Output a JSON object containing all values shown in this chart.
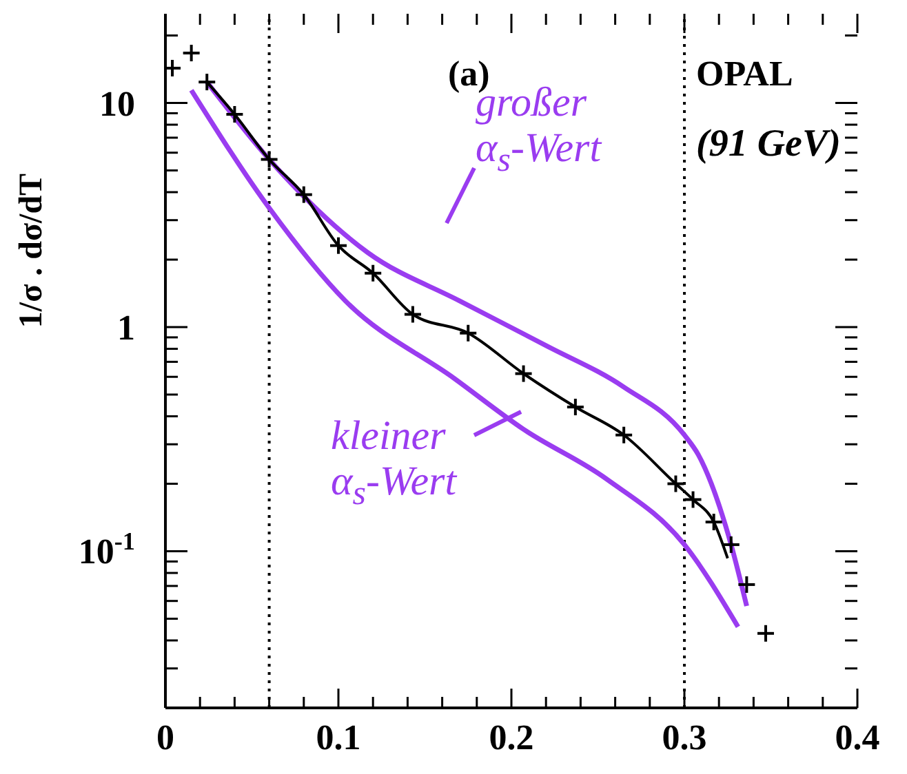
{
  "chart_data": {
    "type": "line",
    "ylabel": "1/σ . dσ/dT",
    "log": "y",
    "xlim": [
      0,
      0.4
    ],
    "xticks": [
      0,
      {
        "value": 0.02,
        "label": null
      },
      {
        "value": 0.04,
        "label": null
      },
      {
        "value": 0.06,
        "label": null
      },
      {
        "value": 0.08,
        "label": null
      },
      0.1,
      {
        "value": 0.12,
        "label": null
      },
      {
        "value": 0.14,
        "label": null
      },
      {
        "value": 0.16,
        "label": null
      },
      {
        "value": 0.18,
        "label": null
      },
      0.2,
      {
        "value": 0.22,
        "label": null
      },
      {
        "value": 0.24,
        "label": null
      },
      {
        "value": 0.26,
        "label": null
      },
      {
        "value": 0.28,
        "label": null
      },
      0.3,
      {
        "value": 0.32,
        "label": null
      },
      {
        "value": 0.34,
        "label": null
      },
      {
        "value": 0.36,
        "label": null
      },
      {
        "value": 0.38,
        "label": null
      },
      0.4
    ],
    "ylim": [
      0.02,
      25
    ],
    "yticks": [
      {
        "value": 0.02,
        "label": null
      },
      {
        "value": 0.03,
        "label": null
      },
      {
        "value": 0.04,
        "label": null
      },
      {
        "value": 0.05,
        "label": null
      },
      {
        "value": 0.06,
        "label": null
      },
      {
        "value": 0.07,
        "label": null
      },
      {
        "value": 0.08,
        "label": null
      },
      {
        "value": 0.09,
        "label": null
      },
      {
        "value": 0.1,
        "label": "10$^{-1}$"
      },
      {
        "value": 0.2,
        "label": null
      },
      {
        "value": 0.3,
        "label": null
      },
      {
        "value": 0.4,
        "label": null
      },
      {
        "value": 0.5,
        "label": null
      },
      {
        "value": 0.6,
        "label": null
      },
      {
        "value": 0.7,
        "label": null
      },
      {
        "value": 0.8,
        "label": null
      },
      {
        "value": 0.9,
        "label": null
      },
      1,
      {
        "value": 2,
        "label": null
      },
      {
        "value": 3,
        "label": null
      },
      {
        "value": 4,
        "label": null
      },
      {
        "value": 5,
        "label": null
      },
      {
        "value": 6,
        "label": null
      },
      {
        "value": 7,
        "label": null
      },
      {
        "value": 8,
        "label": null
      },
      {
        "value": 9,
        "label": null
      },
      10,
      {
        "value": 20,
        "label": null
      }
    ],
    "ref_lines": [
      {
        "axis": "x",
        "value": 0.06,
        "line_style": "dotted",
        "color": "#000000"
      },
      {
        "axis": "x",
        "value": 0.3,
        "line_style": "dotted",
        "color": "#000000"
      }
    ],
    "annotations": [
      "(a)",
      "OPAL",
      "(91 GeV)",
      "großer α$_{s}$-Wert",
      "kleiner α$_{s}$-Wert"
    ],
    "series": [
      {
        "type": "line",
        "color": "#9a3cf0",
        "x": [
          0.024,
          0.06,
          0.117,
          0.17,
          0.221,
          0.265,
          0.3,
          0.308,
          0.327,
          0.336
        ],
        "values": [
          12.4,
          5.6,
          2.15,
          1.31,
          0.82,
          0.54,
          0.33,
          0.27,
          0.107,
          0.057
        ]
      },
      {
        "type": "line",
        "color": "#9a3cf0",
        "x": [
          0.015,
          0.06,
          0.104,
          0.167,
          0.207,
          0.255,
          0.3,
          0.331
        ],
        "values": [
          11.4,
          3.4,
          1.31,
          0.59,
          0.35,
          0.21,
          0.107,
          0.046
        ]
      },
      {
        "type": "line",
        "color": "#000000",
        "x": [
          0.024,
          0.04,
          0.06,
          0.08,
          0.1,
          0.12,
          0.143,
          0.175,
          0.207,
          0.237,
          0.265,
          0.295,
          0.305,
          0.317,
          0.325
        ],
        "values": [
          12.4,
          8.9,
          5.6,
          3.9,
          2.31,
          1.74,
          1.14,
          0.94,
          0.62,
          0.44,
          0.33,
          0.2,
          0.17,
          0.135,
          0.093
        ]
      },
      {
        "type": "scatter",
        "color": "#000000",
        "marker": "cross",
        "x": [
          0.004,
          0.015,
          0.024,
          0.04,
          0.06,
          0.08,
          0.1,
          0.12,
          0.143,
          0.175,
          0.207,
          0.237,
          0.265,
          0.295,
          0.305,
          0.317,
          0.327,
          0.336,
          0.347
        ],
        "values": [
          14.3,
          16.7,
          12.4,
          8.9,
          5.6,
          3.9,
          2.31,
          1.74,
          1.14,
          0.94,
          0.62,
          0.44,
          0.33,
          0.2,
          0.17,
          0.135,
          0.107,
          0.071,
          0.043
        ]
      }
    ]
  }
}
